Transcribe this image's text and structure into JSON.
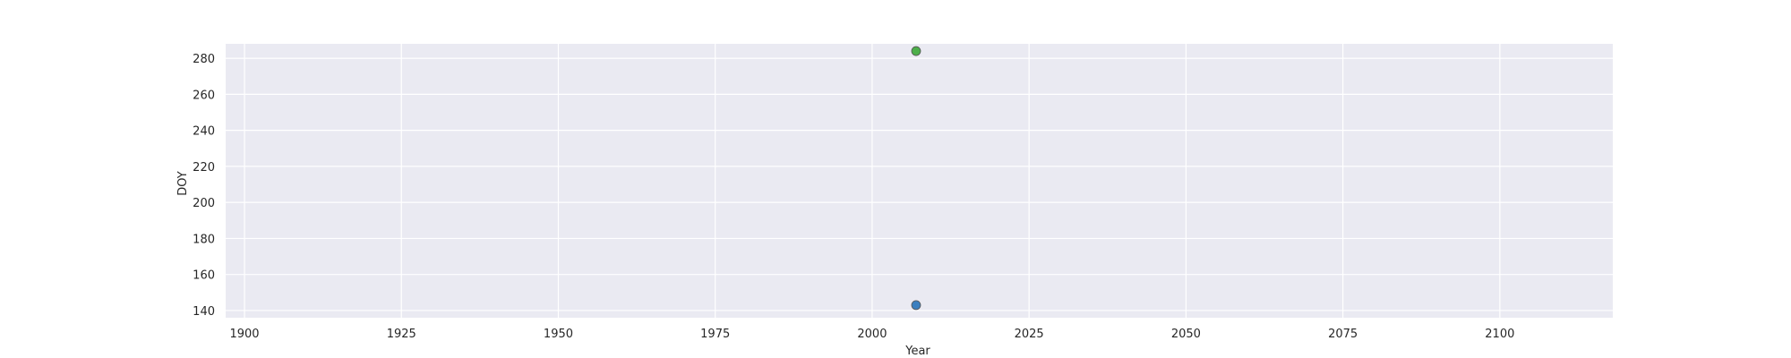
{
  "chart_data": {
    "type": "scatter",
    "xlabel": "Year",
    "ylabel": "DOY",
    "xlim": [
      1897,
      2118
    ],
    "ylim": [
      136,
      288
    ],
    "x_ticks": [
      1900,
      1925,
      1950,
      1975,
      2000,
      2025,
      2050,
      2075,
      2100
    ],
    "y_ticks": [
      140,
      160,
      180,
      200,
      220,
      240,
      260,
      280
    ],
    "grid": true,
    "background_color": "#eaeaf2",
    "series": [
      {
        "color": "#3b7fbf",
        "points": [
          {
            "x": 2007,
            "y": 143
          }
        ]
      },
      {
        "color": "#4daf4a",
        "points": [
          {
            "x": 2007,
            "y": 284
          }
        ]
      }
    ]
  }
}
